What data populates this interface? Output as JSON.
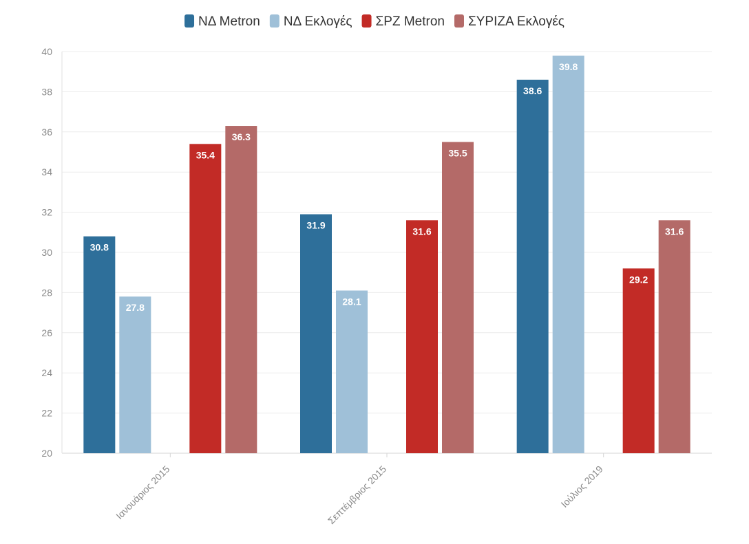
{
  "chart_data": {
    "type": "bar",
    "categories": [
      "Ιανουάριος 2015",
      "Σεπτέμβριος 2015",
      "Ιούλιος 2019"
    ],
    "series": [
      {
        "name": "ΝΔ Metron",
        "color": "#2e6f9a",
        "values": [
          30.8,
          31.9,
          38.6
        ]
      },
      {
        "name": "ΝΔ Εκλογές",
        "color": "#9fc0d8",
        "values": [
          27.8,
          28.1,
          39.8
        ]
      },
      {
        "name": "ΣΡΖ Metron",
        "color": "#c22b26",
        "values": [
          35.4,
          31.6,
          29.2
        ]
      },
      {
        "name": "ΣΥΡΙΖΑ Εκλογές",
        "color": "#b46a68",
        "values": [
          36.3,
          35.5,
          31.6
        ]
      }
    ],
    "ylim": [
      20,
      40
    ],
    "yticks": [
      20,
      22,
      24,
      26,
      28,
      30,
      32,
      34,
      36,
      38,
      40
    ],
    "grid": true,
    "legend_position": "top-center",
    "title": "",
    "xlabel": "",
    "ylabel": ""
  }
}
